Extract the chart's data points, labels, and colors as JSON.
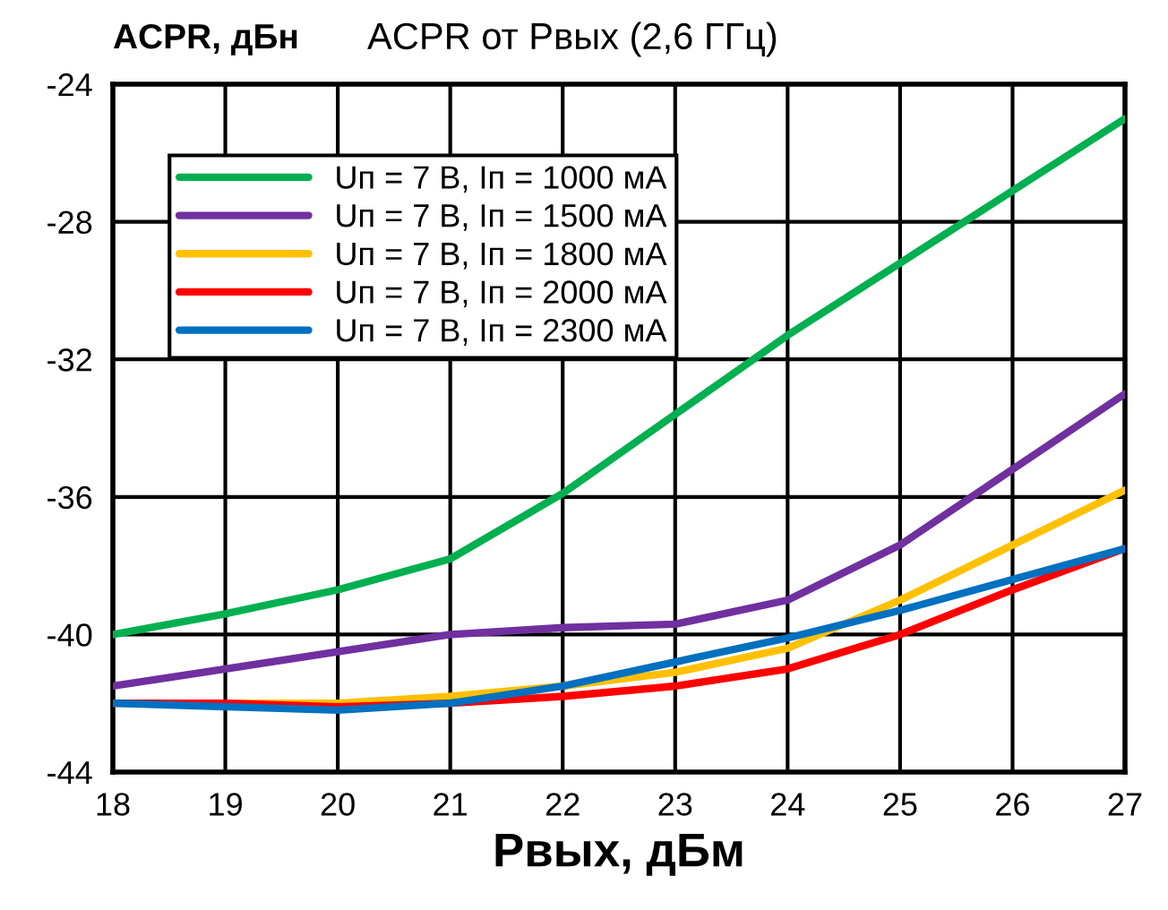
{
  "chart_data": {
    "type": "line",
    "title": "ACPR от Pвых (2,6 ГГц)",
    "ylabel": "ACPR, дБн",
    "xlabel": "Pвых, дБм",
    "x": [
      18,
      19,
      20,
      21,
      22,
      23,
      24,
      25,
      26,
      27
    ],
    "series": [
      {
        "name": "Uп = 7 В, Iп = 1000 мА",
        "color": "#00b050",
        "values": [
          -40.0,
          -39.4,
          -38.7,
          -37.8,
          -35.9,
          -33.6,
          -31.3,
          -29.2,
          -27.1,
          -25.0
        ]
      },
      {
        "name": "Uп = 7 В, Iп = 1500 мА",
        "color": "#7030a0",
        "values": [
          -41.5,
          -41.0,
          -40.5,
          -40.0,
          -39.8,
          -39.7,
          -39.0,
          -37.4,
          -35.2,
          -33.0
        ]
      },
      {
        "name": "Uп = 7 В, Iп = 1800 мА",
        "color": "#ffc000",
        "values": [
          -42.0,
          -42.0,
          -42.0,
          -41.8,
          -41.5,
          -41.1,
          -40.4,
          -39.0,
          -37.4,
          -35.8
        ]
      },
      {
        "name": "Uп = 7 В, Iп = 2000 мА",
        "color": "#ff0000",
        "values": [
          -42.0,
          -42.0,
          -42.1,
          -42.0,
          -41.8,
          -41.5,
          -41.0,
          -40.0,
          -38.7,
          -37.5
        ]
      },
      {
        "name": "Uп = 7 В, Iп = 2300 мА",
        "color": "#0070c0",
        "values": [
          -42.0,
          -42.1,
          -42.2,
          -42.0,
          -41.5,
          -40.8,
          -40.1,
          -39.3,
          -38.4,
          -37.5
        ]
      }
    ],
    "xlim": [
      18,
      27
    ],
    "xticks": [
      18,
      19,
      20,
      21,
      22,
      23,
      24,
      25,
      26,
      27
    ],
    "ylim": [
      -44,
      -24
    ],
    "yticks": [
      -44,
      -40,
      -36,
      -32,
      -28,
      -24
    ],
    "grid": true,
    "legend": "top left",
    "marker": "none",
    "line_style": "solid"
  }
}
